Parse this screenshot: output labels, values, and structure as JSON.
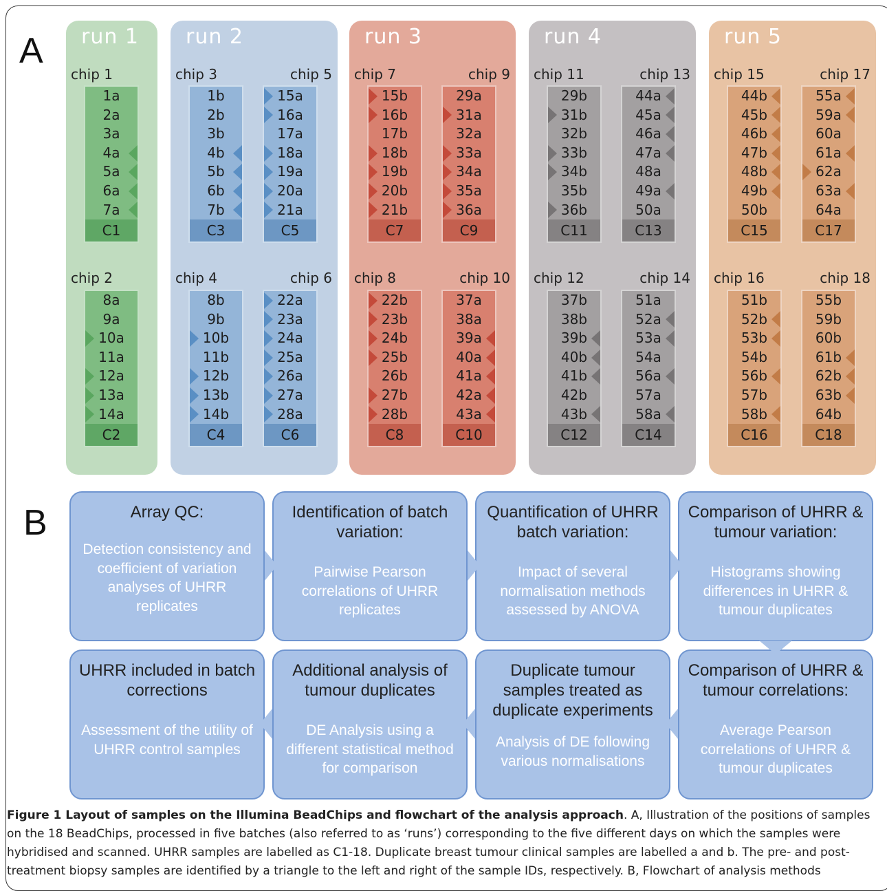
{
  "panel_a_label": "A",
  "panel_b_label": "B",
  "runs": [
    {
      "title": "run 1",
      "bg": "#c0dcbf",
      "chip_bg": "#7fbc82",
      "ctrl_bg": "#5fa765",
      "tri": "#5aa65f",
      "chips": [
        {
          "label": "chip 1",
          "col": 0,
          "row": 0,
          "slots": [
            [
              "1a",
              ""
            ],
            [
              "2a",
              ""
            ],
            [
              "3a",
              ""
            ],
            [
              "4a",
              "R"
            ],
            [
              "5a",
              "R"
            ],
            [
              "6a",
              "R"
            ],
            [
              "7a",
              "R"
            ]
          ],
          "ctrl": "C1"
        },
        {
          "label": "chip 2",
          "col": 0,
          "row": 1,
          "slots": [
            [
              "8a",
              ""
            ],
            [
              "9a",
              ""
            ],
            [
              "10a",
              "L"
            ],
            [
              "11a",
              ""
            ],
            [
              "12a",
              "L"
            ],
            [
              "13a",
              "L"
            ],
            [
              "14a",
              "L"
            ]
          ],
          "ctrl": "C2"
        }
      ]
    },
    {
      "title": "run 2",
      "bg": "#c1d1e4",
      "chip_bg": "#94b5d8",
      "ctrl_bg": "#6d97c3",
      "tri": "#5a8fc4",
      "chips": [
        {
          "label": "chip 3",
          "col": 0,
          "row": 0,
          "slots": [
            [
              "1b",
              ""
            ],
            [
              "2b",
              ""
            ],
            [
              "3b",
              ""
            ],
            [
              "4b",
              "R"
            ],
            [
              "5b",
              "R"
            ],
            [
              "6b",
              "R"
            ],
            [
              "7b",
              "R"
            ]
          ],
          "ctrl": "C3"
        },
        {
          "label": "chip 5",
          "col": 1,
          "row": 0,
          "slots": [
            [
              "15a",
              "L"
            ],
            [
              "16a",
              "L"
            ],
            [
              "17a",
              ""
            ],
            [
              "18a",
              "L"
            ],
            [
              "19a",
              "L"
            ],
            [
              "20a",
              "L"
            ],
            [
              "21a",
              "L"
            ]
          ],
          "ctrl": "C5"
        },
        {
          "label": "chip 4",
          "col": 0,
          "row": 1,
          "slots": [
            [
              "8b",
              ""
            ],
            [
              "9b",
              ""
            ],
            [
              "10b",
              "L"
            ],
            [
              "11b",
              ""
            ],
            [
              "12b",
              "L"
            ],
            [
              "13b",
              "L"
            ],
            [
              "14b",
              "L"
            ]
          ],
          "ctrl": "C4"
        },
        {
          "label": "chip 6",
          "col": 1,
          "row": 1,
          "slots": [
            [
              "22a",
              "L"
            ],
            [
              "23a",
              "L"
            ],
            [
              "24a",
              "L"
            ],
            [
              "25a",
              "L"
            ],
            [
              "26a",
              "L"
            ],
            [
              "27a",
              "L"
            ],
            [
              "28a",
              "L"
            ]
          ],
          "ctrl": "C6"
        }
      ]
    },
    {
      "title": "run 3",
      "bg": "#e3a99a",
      "chip_bg": "#d8806f",
      "ctrl_bg": "#c4604f",
      "tri": "#c44a3a",
      "chips": [
        {
          "label": "chip 7",
          "col": 0,
          "row": 0,
          "slots": [
            [
              "15b",
              "L"
            ],
            [
              "16b",
              "L"
            ],
            [
              "17b",
              ""
            ],
            [
              "18b",
              "L"
            ],
            [
              "19b",
              "L"
            ],
            [
              "20b",
              "L"
            ],
            [
              "21b",
              "L"
            ]
          ],
          "ctrl": "C7"
        },
        {
          "label": "chip 9",
          "col": 1,
          "row": 0,
          "slots": [
            [
              "29a",
              ""
            ],
            [
              "31a",
              "L"
            ],
            [
              "32a",
              ""
            ],
            [
              "33a",
              "L"
            ],
            [
              "34a",
              "L"
            ],
            [
              "35a",
              "L"
            ],
            [
              "36a",
              "L"
            ]
          ],
          "ctrl": "C9"
        },
        {
          "label": "chip 8",
          "col": 0,
          "row": 1,
          "slots": [
            [
              "22b",
              "L"
            ],
            [
              "23b",
              "L"
            ],
            [
              "24b",
              "L"
            ],
            [
              "25b",
              "L"
            ],
            [
              "26b",
              ""
            ],
            [
              "27b",
              "L"
            ],
            [
              "28b",
              "L"
            ]
          ],
          "ctrl": "C8"
        },
        {
          "label": "chip 10",
          "col": 1,
          "row": 1,
          "slots": [
            [
              "37a",
              ""
            ],
            [
              "38a",
              ""
            ],
            [
              "39a",
              "R"
            ],
            [
              "40a",
              "R"
            ],
            [
              "41a",
              "R"
            ],
            [
              "42a",
              "R"
            ],
            [
              "43a",
              "R"
            ]
          ],
          "ctrl": "C10"
        }
      ]
    },
    {
      "title": "run 4",
      "bg": "#c4c0c2",
      "chip_bg": "#a3a0a1",
      "ctrl_bg": "#858283",
      "tri": "#777475",
      "chips": [
        {
          "label": "chip 11",
          "col": 0,
          "row": 0,
          "slots": [
            [
              "29b",
              ""
            ],
            [
              "31b",
              "L"
            ],
            [
              "32b",
              ""
            ],
            [
              "33b",
              "L"
            ],
            [
              "34b",
              "L"
            ],
            [
              "35b",
              ""
            ],
            [
              "36b",
              "L"
            ]
          ],
          "ctrl": "C11"
        },
        {
          "label": "chip 13",
          "col": 1,
          "row": 0,
          "slots": [
            [
              "44a",
              "R"
            ],
            [
              "45a",
              "R"
            ],
            [
              "46a",
              "R"
            ],
            [
              "47a",
              "R"
            ],
            [
              "48a",
              ""
            ],
            [
              "49a",
              "R"
            ],
            [
              "50a",
              ""
            ]
          ],
          "ctrl": "C13"
        },
        {
          "label": "chip 12",
          "col": 0,
          "row": 1,
          "slots": [
            [
              "37b",
              ""
            ],
            [
              "38b",
              ""
            ],
            [
              "39b",
              "R"
            ],
            [
              "40b",
              "R"
            ],
            [
              "41b",
              "R"
            ],
            [
              "42b",
              ""
            ],
            [
              "43b",
              "R"
            ]
          ],
          "ctrl": "C12"
        },
        {
          "label": "chip 14",
          "col": 1,
          "row": 1,
          "slots": [
            [
              "51a",
              ""
            ],
            [
              "52a",
              "R"
            ],
            [
              "53a",
              "R"
            ],
            [
              "54a",
              ""
            ],
            [
              "56a",
              "R"
            ],
            [
              "57a",
              ""
            ],
            [
              "58a",
              "R"
            ]
          ],
          "ctrl": "C14"
        }
      ]
    },
    {
      "title": "run 5",
      "bg": "#e8c3a4",
      "chip_bg": "#d9a37a",
      "ctrl_bg": "#c48a5c",
      "tri": "#c27c47",
      "chips": [
        {
          "label": "chip 15",
          "col": 0,
          "row": 0,
          "slots": [
            [
              "44b",
              "R"
            ],
            [
              "45b",
              "R"
            ],
            [
              "46b",
              "R"
            ],
            [
              "47b",
              "R"
            ],
            [
              "48b",
              "R"
            ],
            [
              "49b",
              "R"
            ],
            [
              "50b",
              ""
            ]
          ],
          "ctrl": "C15"
        },
        {
          "label": "chip 17",
          "col": 1,
          "row": 0,
          "slots": [
            [
              "55a",
              "R"
            ],
            [
              "59a",
              "R"
            ],
            [
              "60a",
              ""
            ],
            [
              "61a",
              "R"
            ],
            [
              "62a",
              "L"
            ],
            [
              "63a",
              "R"
            ],
            [
              "64a",
              ""
            ]
          ],
          "ctrl": "C17"
        },
        {
          "label": "chip 16",
          "col": 0,
          "row": 1,
          "slots": [
            [
              "51b",
              ""
            ],
            [
              "52b",
              "R"
            ],
            [
              "53b",
              "R"
            ],
            [
              "54b",
              ""
            ],
            [
              "56b",
              "R"
            ],
            [
              "57b",
              ""
            ],
            [
              "58b",
              "R"
            ]
          ],
          "ctrl": "C16"
        },
        {
          "label": "chip 18",
          "col": 1,
          "row": 1,
          "slots": [
            [
              "55b",
              ""
            ],
            [
              "59b",
              ""
            ],
            [
              "60b",
              ""
            ],
            [
              "61b",
              "R"
            ],
            [
              "62b",
              "R"
            ],
            [
              "63b",
              "R"
            ],
            [
              "64b",
              ""
            ]
          ],
          "ctrl": "C18"
        }
      ]
    }
  ],
  "flow": [
    {
      "title": "Array QC:",
      "desc": "Detection consistency and coefficient of variation analyses of UHRR replicates"
    },
    {
      "title": "Identification of batch variation:",
      "desc": "Pairwise Pearson correlations of UHRR replicates"
    },
    {
      "title": "Quantification of UHRR batch variation:",
      "desc": "Impact of several normalisation methods assessed by ANOVA"
    },
    {
      "title": "Comparison of UHRR & tumour variation:",
      "desc": "Histograms showing differences in UHRR & tumour duplicates"
    },
    {
      "title": "UHRR included in batch corrections",
      "desc": "Assessment of the utility of UHRR control samples"
    },
    {
      "title": "Additional analysis of tumour duplicates",
      "desc": "DE Analysis using a different statistical method for comparison"
    },
    {
      "title": "Duplicate tumour samples treated as duplicate experiments",
      "desc": "Analysis of DE following various normalisations"
    },
    {
      "title": "Comparison of UHRR & tumour correlations:",
      "desc": "Average Pearson correlations of UHRR & tumour duplicates"
    }
  ],
  "caption": {
    "bold": "Figure 1 Layout of samples on the Illumina BeadChips and flowchart of the analysis approach",
    "text": ". A, Illustration of the positions of samples on the 18 BeadChips, processed in five batches (also referred to as ‘runs’) corresponding to the five different days on which the samples were hybridised and scanned. UHRR samples are labelled as C1-18. Duplicate breast tumour clinical samples are labelled a and b. The pre- and post-treatment biopsy samples are identified by a triangle to the left and right of the sample IDs, respectively. B, Flowchart of analysis methods"
  }
}
